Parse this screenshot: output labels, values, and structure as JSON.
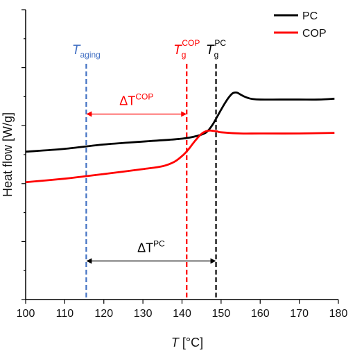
{
  "chart_data": {
    "type": "line",
    "xlabel_main": "T",
    "xlabel_unit": " [°C]",
    "ylabel": "Heat flow [W/g]",
    "xlim": [
      100,
      180
    ],
    "ylim": [
      0,
      10
    ],
    "x_ticks": [
      100,
      110,
      120,
      130,
      140,
      150,
      160,
      170,
      180
    ],
    "y_ticks": [
      0,
      1,
      2,
      3,
      4,
      5,
      6,
      7,
      8,
      9,
      10
    ],
    "y_tick_labels_shown": false,
    "grid": false,
    "legend_position": "top-right",
    "series": [
      {
        "name": "PC",
        "color": "#000000",
        "x": [
          100,
          110,
          120,
          130,
          140,
          144,
          146,
          147,
          148,
          149,
          150,
          151,
          152,
          153,
          154,
          155,
          156,
          157,
          158,
          160,
          165,
          170,
          175,
          179
        ],
        "y": [
          5.1,
          5.2,
          5.35,
          5.45,
          5.55,
          5.65,
          5.75,
          5.88,
          6.07,
          6.31,
          6.55,
          6.78,
          6.98,
          7.12,
          7.14,
          7.07,
          7.0,
          6.95,
          6.92,
          6.9,
          6.9,
          6.9,
          6.9,
          6.93
        ]
      },
      {
        "name": "COP",
        "color": "#ff0000",
        "x": [
          100,
          110,
          115,
          120,
          130,
          135,
          138,
          140,
          141,
          142,
          143,
          144,
          145,
          146,
          147,
          148,
          149,
          150,
          155,
          160,
          170,
          179
        ],
        "y": [
          4.05,
          4.17,
          4.25,
          4.33,
          4.5,
          4.6,
          4.75,
          4.95,
          5.08,
          5.24,
          5.42,
          5.58,
          5.72,
          5.8,
          5.83,
          5.82,
          5.8,
          5.77,
          5.73,
          5.73,
          5.73,
          5.75
        ]
      }
    ],
    "vlines": [
      {
        "id": "t-aging",
        "x": 115.5,
        "color": "#4472c4",
        "label_main": "T",
        "label_sub": "aging",
        "label_sup": ""
      },
      {
        "id": "tg-cop",
        "x": 141.2,
        "color": "#ff0000",
        "label_main": "T",
        "label_sub": "g",
        "label_sup": "COP"
      },
      {
        "id": "tg-pc",
        "x": 148.7,
        "color": "#000000",
        "label_main": "T",
        "label_sub": "g",
        "label_sup": "PC"
      }
    ],
    "arrows": [
      {
        "id": "delta-t-cop",
        "x1": 115.5,
        "x2": 141.2,
        "y": 6.4,
        "color": "#ff0000",
        "label_main": "ΔT",
        "label_sup": "COP"
      },
      {
        "id": "delta-t-pc",
        "x1": 115.5,
        "x2": 148.7,
        "y": 1.33,
        "color": "#000000",
        "label_main": "ΔT",
        "label_sup": "PC"
      }
    ]
  }
}
